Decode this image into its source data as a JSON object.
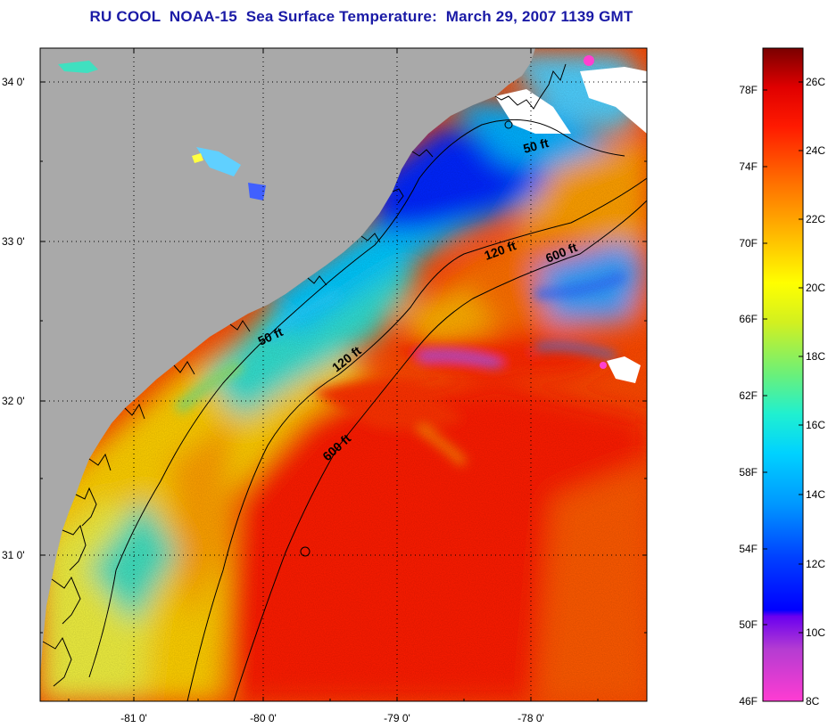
{
  "title": "RU COOL  NOAA-15  Sea Surface Temperature:  March 29, 2007 1139 GMT",
  "colors": {
    "land": "#a9a9a9",
    "cloud": "#ffffff",
    "warm": "#ff1a00",
    "cool": "#00c8ff",
    "cold": "#0020ff",
    "title": "#1a1aa6"
  },
  "map": {
    "lon_ticks": [
      "-81 0'",
      "-80 0'",
      "-79 0'",
      "-78 0'"
    ],
    "lat_ticks": [
      "34 0'",
      "33 0'",
      "32 0'",
      "31 0'"
    ],
    "isobaths": [
      {
        "depth": "50 ft",
        "label": "50 ft"
      },
      {
        "depth": "50 ft",
        "label": "50 ft"
      },
      {
        "depth": "120 ft",
        "label": "120 ft"
      },
      {
        "depth": "120 ft",
        "label": "120 ft"
      },
      {
        "depth": "600 ft",
        "label": "600 ft"
      },
      {
        "depth": "600 ft",
        "label": "600 ft"
      }
    ]
  },
  "colorbar": {
    "fahrenheit_labels": [
      "78F",
      "74F",
      "70F",
      "66F",
      "62F",
      "58F",
      "54F",
      "50F",
      "46F"
    ],
    "celsius_labels": [
      "26C",
      "24C",
      "22C",
      "20C",
      "18C",
      "16C",
      "14C",
      "12C",
      "10C",
      "8C"
    ]
  }
}
